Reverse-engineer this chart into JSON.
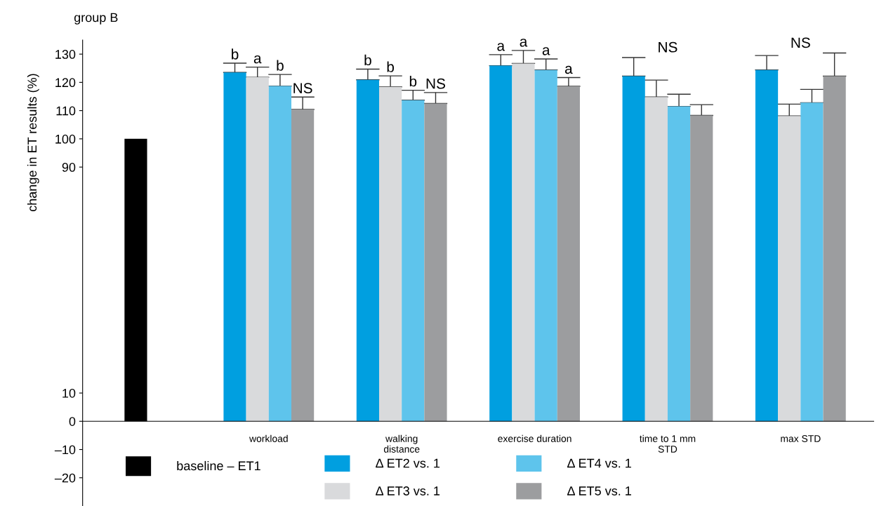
{
  "chart_data": {
    "type": "bar",
    "title": "group B",
    "ylabel": "change in ET results (%)",
    "categories": [
      null,
      "workload",
      "walking\ndistance",
      "exercise duration",
      "time to 1 mm\nSTD",
      "max STD"
    ],
    "series": [
      {
        "name": "baseline – ET1",
        "color": "#000000",
        "values": [
          100,
          null,
          null,
          null,
          null,
          null
        ]
      },
      {
        "name": "Δ ET2 vs. 1",
        "color": "#009fe0",
        "values": [
          null,
          123.5,
          120.9,
          125.9,
          122.2,
          124.4
        ],
        "errors": [
          null,
          [
            123.5,
            126.8
          ],
          [
            120.9,
            124.7
          ],
          [
            125.9,
            129.8
          ],
          [
            122.2,
            128.8
          ],
          [
            124.4,
            129.5
          ]
        ]
      },
      {
        "name": "Δ ET3 vs. 1",
        "color": "#d9dadc",
        "values": [
          null,
          121.8,
          118.4,
          126.7,
          114.8,
          108.1
        ],
        "errors": [
          null,
          [
            121.8,
            125.4
          ],
          [
            118.4,
            122.3
          ],
          [
            126.7,
            131.3
          ],
          [
            114.8,
            120.8
          ],
          [
            108.1,
            112.3
          ]
        ]
      },
      {
        "name": "Δ ET4 vs. 1",
        "color": "#5ec4ec",
        "values": [
          null,
          118.7,
          113.7,
          124.4,
          111.5,
          112.8
        ],
        "errors": [
          null,
          [
            118.7,
            122.8
          ],
          [
            113.7,
            117.2
          ],
          [
            124.4,
            128.3
          ],
          [
            111.5,
            115.8
          ],
          [
            112.8,
            117.5
          ]
        ]
      },
      {
        "name": "Δ ET5 vs. 1",
        "color": "#9c9d9f",
        "values": [
          null,
          110.4,
          112.5,
          118.6,
          108.3,
          122.2
        ],
        "errors": [
          null,
          [
            110.4,
            114.8
          ],
          [
            112.5,
            116.4
          ],
          [
            118.6,
            121.7
          ],
          [
            108.3,
            112.1
          ],
          [
            122.2,
            130.4
          ]
        ]
      }
    ],
    "annotations": [
      "b",
      "a",
      "b",
      "NS",
      "b",
      "b",
      "b",
      "NS",
      "a",
      "a",
      "a",
      "a",
      "NS",
      "NS"
    ],
    "ylim": [
      -30,
      135
    ],
    "yticks": [
      {
        "value": -20,
        "label": "–20"
      },
      {
        "value": -10,
        "label": "–10"
      },
      0,
      10,
      90,
      100,
      110,
      120,
      130
    ],
    "legend": "bottom",
    "grid": false
  }
}
